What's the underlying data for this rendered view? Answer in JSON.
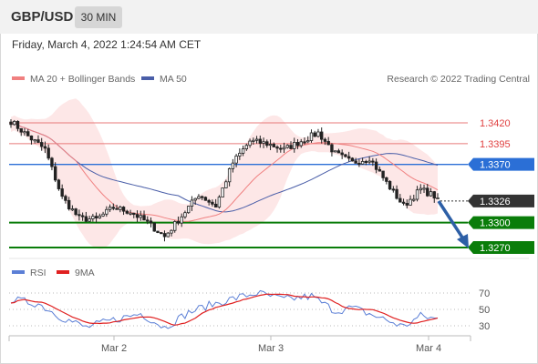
{
  "header": {
    "symbol": "GBP/USD",
    "timeframe": "30 MIN"
  },
  "datetime": "Friday, March 4, 2022 1:24:54 AM CET",
  "legend": {
    "ma20_label": "MA 20 + Bollinger Bands",
    "ma50_label": "MA 50",
    "copyright": "Research © 2022 Trading Central",
    "rsi_label": "RSI",
    "rsi_ma_label": "9MA"
  },
  "colors": {
    "ma20": "#f08080",
    "ma50": "#4a5ea8",
    "bands": "#fde3e3",
    "resistance": "#e87a7a",
    "pivot": "#2b6fd6",
    "support": "#0a7d0a",
    "current": "#333333",
    "arrow": "#2d5fa6",
    "rsi": "#5b7fd6",
    "rsi_ma": "#e02020"
  },
  "chart_data": {
    "type": "candlestick",
    "x_labels": [
      "Mar 2",
      "Mar 3",
      "Mar 4"
    ],
    "y_range": [
      1.3255,
      1.344
    ],
    "levels": [
      {
        "label": "1.3420",
        "value": 1.342,
        "kind": "resistance"
      },
      {
        "label": "1.3395",
        "value": 1.3395,
        "kind": "resistance"
      },
      {
        "label": "1.3370",
        "value": 1.337,
        "kind": "pivot"
      },
      {
        "label": "1.3326",
        "value": 1.3326,
        "kind": "current"
      },
      {
        "label": "1.3300",
        "value": 1.33,
        "kind": "support"
      },
      {
        "label": "1.3270",
        "value": 1.327,
        "kind": "support"
      }
    ],
    "rsi_levels": [
      {
        "label": "70",
        "value": 70
      },
      {
        "label": "50",
        "value": 50
      },
      {
        "label": "30",
        "value": 30
      }
    ],
    "close_anchors": [
      [
        0,
        1.3422
      ],
      [
        5,
        1.3404
      ],
      [
        10,
        1.3388
      ],
      [
        15,
        1.333
      ],
      [
        20,
        1.3305
      ],
      [
        25,
        1.3304
      ],
      [
        30,
        1.3318
      ],
      [
        35,
        1.3313
      ],
      [
        40,
        1.33
      ],
      [
        45,
        1.3283
      ],
      [
        50,
        1.3308
      ],
      [
        55,
        1.3334
      ],
      [
        60,
        1.332
      ],
      [
        65,
        1.3372
      ],
      [
        70,
        1.3398
      ],
      [
        75,
        1.3395
      ],
      [
        80,
        1.3388
      ],
      [
        85,
        1.3398
      ],
      [
        90,
        1.3408
      ],
      [
        95,
        1.3383
      ],
      [
        100,
        1.3372
      ],
      [
        105,
        1.3378
      ],
      [
        110,
        1.3348
      ],
      [
        115,
        1.332
      ],
      [
        120,
        1.334
      ],
      [
        124,
        1.3332
      ],
      [
        125,
        1.3326
      ]
    ],
    "rsi_anchors": [
      [
        0,
        62
      ],
      [
        8,
        57
      ],
      [
        15,
        40
      ],
      [
        22,
        28
      ],
      [
        30,
        37
      ],
      [
        38,
        45
      ],
      [
        45,
        28
      ],
      [
        52,
        46
      ],
      [
        58,
        55
      ],
      [
        65,
        63
      ],
      [
        72,
        70
      ],
      [
        80,
        62
      ],
      [
        88,
        66
      ],
      [
        95,
        48
      ],
      [
        100,
        52
      ],
      [
        108,
        40
      ],
      [
        115,
        29
      ],
      [
        120,
        42
      ],
      [
        125,
        38
      ]
    ]
  }
}
